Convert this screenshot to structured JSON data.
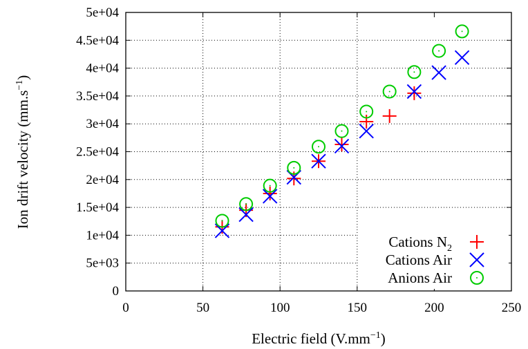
{
  "chart_data": {
    "type": "scatter",
    "xlabel": "Electric field (V.mm",
    "xlabel_sup": "−1",
    "xlabel_end": ")",
    "ylabel": "Ion drift velocity (mm.s",
    "ylabel_sup": "−1",
    "ylabel_end": ")",
    "xlim": [
      0,
      250
    ],
    "ylim": [
      0,
      50000
    ],
    "xticks": [
      0,
      50,
      100,
      150,
      200,
      250
    ],
    "xtick_labels": [
      "0",
      "50",
      "100",
      "150",
      "200",
      "250"
    ],
    "yticks": [
      0,
      5000,
      10000,
      15000,
      20000,
      25000,
      30000,
      35000,
      40000,
      45000,
      50000
    ],
    "ytick_labels": [
      "0",
      "5e+03",
      "1e+04",
      "1.5e+04",
      "2e+04",
      "2.5e+04",
      "3e+04",
      "3.5e+04",
      "4e+04",
      "4.5e+04",
      "5e+04"
    ],
    "grid": true,
    "legend_position": "bottom-right",
    "series": [
      {
        "name": "Cations N",
        "name_sub": "2",
        "marker": "plus",
        "color": "#ff0000",
        "x": [
          62.5,
          78,
          93.5,
          109,
          125,
          140,
          156,
          171,
          187
        ],
        "y": [
          11500,
          14500,
          17500,
          20200,
          23300,
          26300,
          30400,
          31400,
          35500
        ]
      },
      {
        "name": "Cations Air",
        "marker": "cross",
        "color": "#0000ff",
        "x": [
          62.5,
          78,
          93.5,
          109,
          125,
          140,
          156,
          187,
          203,
          218
        ],
        "y": [
          10800,
          13700,
          17000,
          20400,
          23300,
          26000,
          28700,
          35800,
          39200,
          41900
        ]
      },
      {
        "name": "Anions Air",
        "marker": "circle",
        "color": "#00cc00",
        "x": [
          62.5,
          78,
          93.5,
          109,
          125,
          140,
          156,
          171,
          187,
          203,
          218
        ],
        "y": [
          12600,
          15600,
          18900,
          22100,
          25900,
          28700,
          32200,
          35800,
          39300,
          43100,
          46600
        ]
      }
    ]
  }
}
